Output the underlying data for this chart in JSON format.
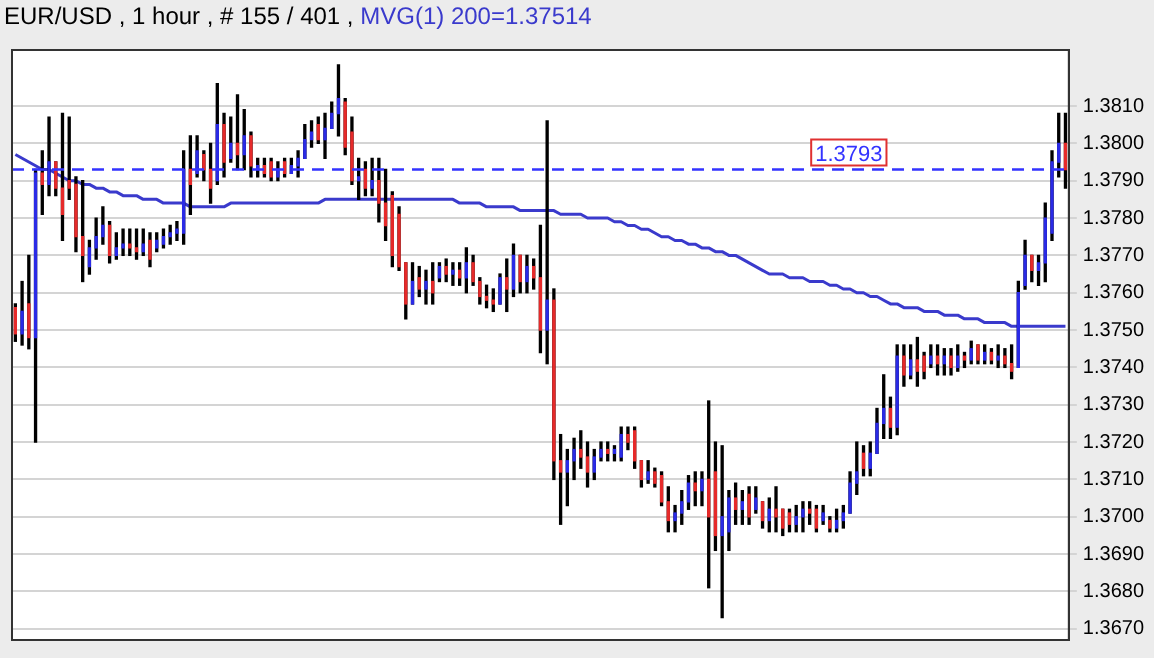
{
  "chart_data": {
    "type": "candlestick",
    "title": "EUR/USD , 1 hour , # 155 / 401 ,",
    "categories": [
      null,
      null,
      null,
      null,
      null,
      null,
      null,
      null,
      null,
      null,
      null,
      null,
      null,
      null,
      null,
      null,
      null,
      null,
      null,
      null,
      null,
      null,
      null,
      null,
      null,
      null,
      null,
      null,
      null,
      null,
      null,
      null,
      null,
      null,
      null,
      null,
      null,
      null,
      null,
      null,
      null,
      null,
      null,
      null,
      null,
      null,
      null,
      null,
      null,
      null,
      null,
      null,
      null,
      null,
      null,
      null,
      null,
      null,
      null,
      null,
      null,
      null,
      null,
      null,
      null,
      null,
      null,
      null,
      null,
      null,
      null,
      null,
      null,
      null,
      null,
      null,
      null,
      null,
      null,
      null,
      null,
      null,
      null,
      null,
      null,
      null,
      null,
      null,
      null,
      null,
      null,
      null,
      null,
      null,
      null,
      null,
      null,
      null,
      null,
      null,
      null,
      null,
      null,
      null,
      null,
      null,
      null,
      null,
      null,
      null,
      null,
      null,
      null,
      null,
      null,
      null,
      null,
      null,
      null,
      null,
      null,
      null,
      null,
      null,
      null,
      null,
      null,
      null,
      null,
      null,
      null,
      null,
      null,
      null,
      null,
      null,
      null,
      null,
      null,
      null,
      null,
      null,
      null,
      null,
      null,
      null,
      null,
      null,
      null,
      null,
      null,
      null,
      null,
      null,
      null,
      null,
      null
    ],
    "series": [
      {
        "type": "candlestick",
        "color": "#000000",
        "colors": [
          "#e62a2a",
          "#2a2ae6",
          "#e62a2a",
          "#2a2ae6",
          "#e62a2a",
          "#2a2ae6",
          "#e62a2a",
          "#e62a2a",
          "#e62a2a",
          "#e62a2a",
          "#e62a2a",
          "#2a2ae6",
          "#2a2ae6",
          "#2a2ae6",
          "#e62a2a",
          "#2a2ae6",
          "#2a2ae6",
          "#e62a2a",
          "#e62a2a",
          "#2a2ae6",
          "#e62a2a",
          "#2a2ae6",
          "#2a2ae6",
          "#2a2ae6",
          "#2a2ae6",
          "#2a2ae6",
          "#e62a2a",
          "#2a2ae6",
          "#e62a2a",
          "#e62a2a",
          "#2a2ae6",
          "#e62a2a",
          "#2a2ae6",
          "#e62a2a",
          "#2a2ae6",
          "#e62a2a",
          "#2a2ae6",
          "#e62a2a",
          "#e62a2a",
          "#2a2ae6",
          "#e62a2a",
          "#2a2ae6",
          "#2a2ae6",
          "#2a2ae6",
          "#2a2ae6",
          "#e62a2a",
          "#2a2ae6",
          "#2a2ae6",
          "#2a2ae6",
          "#e62a2a",
          "#e62a2a",
          "#2a2ae6",
          "#e62a2a",
          "#2a2ae6",
          "#e62a2a",
          "#e62a2a",
          "#e62a2a",
          "#e62a2a",
          "#e62a2a",
          "#2a2ae6",
          "#e62a2a",
          "#2a2ae6",
          "#e62a2a",
          "#2a2ae6",
          "#e62a2a",
          "#2a2ae6",
          "#e62a2a",
          "#2a2ae6",
          "#e62a2a",
          "#e62a2a",
          "#e62a2a",
          "#e62a2a",
          "#2a2ae6",
          "#e62a2a",
          "#2a2ae6",
          "#e62a2a",
          "#2a2ae6",
          "#e62a2a",
          "#e62a2a",
          "#2a2ae6",
          "#e62a2a",
          "#e62a2a",
          "#2a2ae6",
          "#2a2ae6",
          "#e62a2a",
          "#e62a2a",
          "#2a2ae6",
          "#2a2ae6",
          "#e62a2a",
          "#2a2ae6",
          "#2a2ae6",
          "#e62a2a",
          "#e62a2a",
          "#e62a2a",
          "#2a2ae6",
          "#e62a2a",
          "#e62a2a",
          "#e62a2a",
          "#2a2ae6",
          "#2a2ae6",
          "#2a2ae6",
          "#e62a2a",
          "#2a2ae6",
          "#e62a2a",
          "#e62a2a",
          "#2a2ae6",
          "#2a2ae6",
          "#e62a2a",
          "#2a2ae6",
          "#e62a2a",
          "#2a2ae6",
          "#e62a2a",
          "#2a2ae6",
          "#e62a2a",
          "#e62a2a",
          "#e62a2a",
          "#2a2ae6",
          "#2a2ae6",
          "#e62a2a",
          "#e62a2a",
          "#2a2ae6",
          "#e62a2a",
          "#2a2ae6",
          "#2a2ae6",
          "#2a2ae6",
          "#2a2ae6",
          "#e62a2a",
          "#2a2ae6",
          "#2a2ae6",
          "#2a2ae6",
          "#e62a2a",
          "#2a2ae6",
          "#e62a2a",
          "#2a2ae6",
          "#e62a2a",
          "#e62a2a",
          "#2a2ae6",
          "#e62a2a",
          "#2a2ae6",
          "#e62a2a",
          "#2a2ae6",
          "#e62a2a",
          "#2a2ae6",
          "#e62a2a",
          "#2a2ae6",
          "#e62a2a",
          "#2a2ae6",
          "#e62a2a",
          "#e62a2a",
          "#2a2ae6",
          "#2a2ae6",
          "#e62a2a",
          "#2a2ae6",
          "#2a2ae6",
          "#2a2ae6",
          "#2a2ae6",
          "#e62a2a"
        ],
        "ohlc": [
          [
            1.3756,
            1.3757,
            1.3747,
            1.3749
          ],
          [
            1.3749,
            1.3763,
            1.3746,
            1.3755
          ],
          [
            1.3757,
            1.377,
            1.3745,
            1.3748
          ],
          [
            1.3748,
            1.3793,
            1.372,
            1.3792
          ],
          [
            1.3792,
            1.3798,
            1.3781,
            1.3789
          ],
          [
            1.3789,
            1.3807,
            1.3786,
            1.3795
          ],
          [
            1.3795,
            1.3795,
            1.3786,
            1.3788
          ],
          [
            1.3788,
            1.3808,
            1.3774,
            1.3781
          ],
          [
            1.379,
            1.3807,
            1.3785,
            1.3788
          ],
          [
            1.3789,
            1.3791,
            1.3771,
            1.3775
          ],
          [
            1.3775,
            1.379,
            1.3763,
            1.377
          ],
          [
            1.3767,
            1.3774,
            1.3765,
            1.3772
          ],
          [
            1.3772,
            1.378,
            1.3769,
            1.3775
          ],
          [
            1.3775,
            1.3783,
            1.3773,
            1.3778
          ],
          [
            1.3778,
            1.3779,
            1.3768,
            1.377
          ],
          [
            1.377,
            1.3776,
            1.3769,
            1.3772
          ],
          [
            1.3772,
            1.3777,
            1.377,
            1.3773
          ],
          [
            1.3773,
            1.3777,
            1.377,
            1.3772
          ],
          [
            1.3772,
            1.3777,
            1.3769,
            1.3771
          ],
          [
            1.3771,
            1.3777,
            1.377,
            1.3773
          ],
          [
            1.3774,
            1.3776,
            1.3767,
            1.3769
          ],
          [
            1.3772,
            1.3776,
            1.3771,
            1.3774
          ],
          [
            1.3773,
            1.3777,
            1.3772,
            1.3775
          ],
          [
            1.3775,
            1.3778,
            1.3773,
            1.3776
          ],
          [
            1.3776,
            1.3779,
            1.3774,
            1.3777
          ],
          [
            1.3776,
            1.3798,
            1.3773,
            1.3793
          ],
          [
            1.3793,
            1.3802,
            1.3781,
            1.3789
          ],
          [
            1.3792,
            1.3802,
            1.3791,
            1.3798
          ],
          [
            1.3797,
            1.3798,
            1.379,
            1.3793
          ],
          [
            1.3793,
            1.38,
            1.3784,
            1.3788
          ],
          [
            1.379,
            1.3816,
            1.3789,
            1.3805
          ],
          [
            1.3805,
            1.3808,
            1.3791,
            1.3795
          ],
          [
            1.3796,
            1.3807,
            1.3795,
            1.38
          ],
          [
            1.38,
            1.3813,
            1.3793,
            1.3797
          ],
          [
            1.3797,
            1.3809,
            1.3793,
            1.3802
          ],
          [
            1.3802,
            1.3803,
            1.3791,
            1.3794
          ],
          [
            1.3793,
            1.3796,
            1.3791,
            1.3794
          ],
          [
            1.3794,
            1.3796,
            1.3791,
            1.3792
          ],
          [
            1.3795,
            1.3796,
            1.379,
            1.3791
          ],
          [
            1.3791,
            1.3795,
            1.379,
            1.3793
          ],
          [
            1.3795,
            1.3796,
            1.3791,
            1.3792
          ],
          [
            1.3792,
            1.3796,
            1.3792,
            1.3794
          ],
          [
            1.3794,
            1.3798,
            1.3791,
            1.3796
          ],
          [
            1.3796,
            1.3805,
            1.3796,
            1.3801
          ],
          [
            1.3801,
            1.3806,
            1.3799,
            1.3803
          ],
          [
            1.3805,
            1.3807,
            1.38,
            1.3801
          ],
          [
            1.3801,
            1.3808,
            1.3796,
            1.3804
          ],
          [
            1.3804,
            1.3811,
            1.3804,
            1.3808
          ],
          [
            1.3808,
            1.3821,
            1.3802,
            1.3812
          ],
          [
            1.3811,
            1.3812,
            1.3797,
            1.3799
          ],
          [
            1.3803,
            1.3807,
            1.3789,
            1.379
          ],
          [
            1.379,
            1.3796,
            1.3785,
            1.3791
          ],
          [
            1.3793,
            1.3795,
            1.3786,
            1.3788
          ],
          [
            1.3788,
            1.3796,
            1.3786,
            1.379
          ],
          [
            1.379,
            1.3796,
            1.3779,
            1.3784
          ],
          [
            1.3784,
            1.3793,
            1.3774,
            1.3778
          ],
          [
            1.3786,
            1.3787,
            1.3767,
            1.377
          ],
          [
            1.3781,
            1.3783,
            1.3766,
            1.3767
          ],
          [
            1.3768,
            1.3768,
            1.3753,
            1.3757
          ],
          [
            1.3757,
            1.3768,
            1.3757,
            1.3763
          ],
          [
            1.3764,
            1.3767,
            1.3759,
            1.3761
          ],
          [
            1.3761,
            1.3766,
            1.3757,
            1.3763
          ],
          [
            1.3763,
            1.3768,
            1.3757,
            1.376
          ],
          [
            1.3764,
            1.3768,
            1.3763,
            1.3767
          ],
          [
            1.3767,
            1.3769,
            1.3763,
            1.3765
          ],
          [
            1.3765,
            1.3768,
            1.3762,
            1.3766
          ],
          [
            1.3766,
            1.3768,
            1.3762,
            1.3764
          ],
          [
            1.3764,
            1.3772,
            1.376,
            1.3768
          ],
          [
            1.3768,
            1.377,
            1.3762,
            1.3763
          ],
          [
            1.3763,
            1.3764,
            1.3757,
            1.3759
          ],
          [
            1.3759,
            1.3762,
            1.3756,
            1.3758
          ],
          [
            1.3758,
            1.3761,
            1.3755,
            1.3757
          ],
          [
            1.3757,
            1.3765,
            1.3757,
            1.3764
          ],
          [
            1.3764,
            1.3769,
            1.3755,
            1.3761
          ],
          [
            1.3761,
            1.3773,
            1.3759,
            1.377
          ],
          [
            1.377,
            1.377,
            1.376,
            1.3763
          ],
          [
            1.3763,
            1.377,
            1.376,
            1.3767
          ],
          [
            1.3767,
            1.3769,
            1.3761,
            1.3764
          ],
          [
            1.3764,
            1.3778,
            1.3744,
            1.375
          ],
          [
            1.375,
            1.3806,
            1.3741,
            1.3758
          ],
          [
            1.3758,
            1.3761,
            1.371,
            1.3715
          ],
          [
            1.3715,
            1.3722,
            1.3698,
            1.3712
          ],
          [
            1.3712,
            1.3718,
            1.3703,
            1.3715
          ],
          [
            1.3715,
            1.3721,
            1.371,
            1.3718
          ],
          [
            1.3718,
            1.3723,
            1.3713,
            1.3716
          ],
          [
            1.3716,
            1.372,
            1.3708,
            1.3712
          ],
          [
            1.3712,
            1.3718,
            1.371,
            1.3716
          ],
          [
            1.3716,
            1.372,
            1.3715,
            1.3718
          ],
          [
            1.3718,
            1.372,
            1.3715,
            1.3717
          ],
          [
            1.3717,
            1.3719,
            1.3715,
            1.3718
          ],
          [
            1.3716,
            1.3724,
            1.3715,
            1.3722
          ],
          [
            1.3722,
            1.3724,
            1.3718,
            1.372
          ],
          [
            1.3723,
            1.3724,
            1.3713,
            1.3715
          ],
          [
            1.3715,
            1.3715,
            1.3708,
            1.371
          ],
          [
            1.371,
            1.3715,
            1.3709,
            1.3712
          ],
          [
            1.3712,
            1.3713,
            1.3708,
            1.3709
          ],
          [
            1.3711,
            1.3712,
            1.3703,
            1.3704
          ],
          [
            1.3704,
            1.3708,
            1.3696,
            1.3699
          ],
          [
            1.3699,
            1.3703,
            1.3696,
            1.3701
          ],
          [
            1.3701,
            1.3707,
            1.3698,
            1.3704
          ],
          [
            1.3704,
            1.3711,
            1.3702,
            1.3709
          ],
          [
            1.3709,
            1.3712,
            1.3703,
            1.3707
          ],
          [
            1.3707,
            1.3712,
            1.3703,
            1.371
          ],
          [
            1.371,
            1.3731,
            1.3681,
            1.37
          ],
          [
            1.3712,
            1.372,
            1.3691,
            1.3695
          ],
          [
            1.3695,
            1.3719,
            1.3673,
            1.37
          ],
          [
            1.3696,
            1.3707,
            1.3691,
            1.3705
          ],
          [
            1.3705,
            1.3709,
            1.3698,
            1.3702
          ],
          [
            1.3702,
            1.3707,
            1.3698,
            1.3704
          ],
          [
            1.3706,
            1.3708,
            1.3698,
            1.37
          ],
          [
            1.3702,
            1.3708,
            1.3701,
            1.3705
          ],
          [
            1.3704,
            1.3704,
            1.3697,
            1.3699
          ],
          [
            1.3699,
            1.3705,
            1.3696,
            1.3702
          ],
          [
            1.3702,
            1.3708,
            1.3696,
            1.37
          ],
          [
            1.3702,
            1.3702,
            1.3695,
            1.3697
          ],
          [
            1.3701,
            1.3702,
            1.3696,
            1.3698
          ],
          [
            1.3698,
            1.3703,
            1.3696,
            1.37
          ],
          [
            1.37,
            1.3704,
            1.3696,
            1.3702
          ],
          [
            1.3702,
            1.3704,
            1.3698,
            1.3701
          ],
          [
            1.3702,
            1.3703,
            1.3696,
            1.3697
          ],
          [
            1.3699,
            1.3703,
            1.3698,
            1.3701
          ],
          [
            1.3699,
            1.37,
            1.3696,
            1.3697
          ],
          [
            1.3697,
            1.3702,
            1.3696,
            1.3699
          ],
          [
            1.3699,
            1.3703,
            1.3697,
            1.3701
          ],
          [
            1.3701,
            1.3712,
            1.3701,
            1.3709
          ],
          [
            1.3709,
            1.372,
            1.3706,
            1.3712
          ],
          [
            1.3717,
            1.3719,
            1.3711,
            1.3713
          ],
          [
            1.3713,
            1.372,
            1.3711,
            1.3717
          ],
          [
            1.3717,
            1.3729,
            1.3717,
            1.3725
          ],
          [
            1.3725,
            1.3738,
            1.3721,
            1.3729
          ],
          [
            1.3729,
            1.3732,
            1.3721,
            1.3724
          ],
          [
            1.3724,
            1.3746,
            1.3722,
            1.3743
          ],
          [
            1.3743,
            1.3746,
            1.3735,
            1.3738
          ],
          [
            1.3738,
            1.3746,
            1.3737,
            1.3742
          ],
          [
            1.3742,
            1.3748,
            1.3735,
            1.3739
          ],
          [
            1.3743,
            1.3744,
            1.3737,
            1.3739
          ],
          [
            1.3741,
            1.3746,
            1.374,
            1.3743
          ],
          [
            1.3743,
            1.3746,
            1.3738,
            1.3741
          ],
          [
            1.3741,
            1.3745,
            1.3738,
            1.3743
          ],
          [
            1.3743,
            1.3745,
            1.3738,
            1.374
          ],
          [
            1.374,
            1.3746,
            1.3739,
            1.3743
          ],
          [
            1.3743,
            1.3744,
            1.374,
            1.3742
          ],
          [
            1.3742,
            1.3747,
            1.3741,
            1.3745
          ],
          [
            1.3746,
            1.3746,
            1.3741,
            1.3742
          ],
          [
            1.3742,
            1.3746,
            1.3741,
            1.3744
          ],
          [
            1.3744,
            1.3745,
            1.3741,
            1.3742
          ],
          [
            1.3742,
            1.3746,
            1.374,
            1.3743
          ],
          [
            1.3743,
            1.3745,
            1.374,
            1.3741
          ],
          [
            1.3741,
            1.3746,
            1.3737,
            1.3739
          ],
          [
            1.374,
            1.3763,
            1.374,
            1.376
          ],
          [
            1.3762,
            1.3774,
            1.3761,
            1.377
          ],
          [
            1.377,
            1.377,
            1.3763,
            1.3766
          ],
          [
            1.3766,
            1.377,
            1.3762,
            1.3768
          ],
          [
            1.3768,
            1.3784,
            1.3763,
            1.378
          ],
          [
            1.3776,
            1.3798,
            1.3774,
            1.3795
          ],
          [
            1.3795,
            1.3808,
            1.3791,
            1.38
          ],
          [
            1.38,
            1.3808,
            1.3788,
            1.3793
          ]
        ]
      },
      {
        "type": "line",
        "name": "MVG(1) 200=1.37514",
        "color": "#3a3acc",
        "values": [
          1.3797,
          1.3796,
          1.3795,
          1.3794,
          1.3793,
          1.3793,
          1.3792,
          1.3791,
          1.379,
          1.379,
          1.3789,
          1.3789,
          1.3788,
          1.3788,
          1.3787,
          1.3787,
          1.3786,
          1.3786,
          1.3786,
          1.3785,
          1.3785,
          1.3785,
          1.3784,
          1.3784,
          1.3784,
          1.3784,
          1.3783,
          1.3783,
          1.3783,
          1.3783,
          1.3783,
          1.3783,
          1.3784,
          1.3784,
          1.3784,
          1.3784,
          1.3784,
          1.3784,
          1.3784,
          1.3784,
          1.3784,
          1.3784,
          1.3784,
          1.3784,
          1.3784,
          1.3784,
          1.3785,
          1.3785,
          1.3785,
          1.3785,
          1.3785,
          1.3785,
          1.3785,
          1.3785,
          1.3785,
          1.3785,
          1.3785,
          1.3785,
          1.3785,
          1.3785,
          1.3785,
          1.3785,
          1.3785,
          1.3785,
          1.3785,
          1.3785,
          1.3784,
          1.3784,
          1.3784,
          1.3784,
          1.3783,
          1.3783,
          1.3783,
          1.3783,
          1.3783,
          1.3782,
          1.3782,
          1.3782,
          1.3782,
          1.3782,
          1.3782,
          1.3781,
          1.3781,
          1.3781,
          1.3781,
          1.378,
          1.378,
          1.378,
          1.378,
          1.3779,
          1.3779,
          1.3778,
          1.3778,
          1.3777,
          1.3777,
          1.3776,
          1.3775,
          1.3775,
          1.3774,
          1.3774,
          1.3773,
          1.3773,
          1.3772,
          1.3772,
          1.3771,
          1.3771,
          1.377,
          1.377,
          1.3769,
          1.3768,
          1.3767,
          1.3766,
          1.3765,
          1.3765,
          1.3765,
          1.3764,
          1.3764,
          1.3764,
          1.3763,
          1.3763,
          1.3763,
          1.3762,
          1.3762,
          1.3761,
          1.3761,
          1.376,
          1.376,
          1.3759,
          1.3759,
          1.3758,
          1.3757,
          1.3757,
          1.3756,
          1.3756,
          1.3756,
          1.3755,
          1.3755,
          1.3755,
          1.3754,
          1.3754,
          1.3754,
          1.3753,
          1.3753,
          1.3753,
          1.3752,
          1.3752,
          1.3752,
          1.3752,
          1.3751,
          1.3751,
          1.3751,
          1.3751,
          1.3751,
          1.3751,
          1.3751,
          1.3751,
          1.3751
        ]
      }
    ],
    "ref_lines": [
      {
        "axis": "y",
        "value": 1.3793,
        "label": "1.3793",
        "color": "#3333ff",
        "line_style": "dashed"
      }
    ],
    "ylim": [
      1.3667,
      1.3825
    ],
    "yticks": [
      {
        "value": 1.367,
        "label": "1.3670"
      },
      {
        "value": 1.368,
        "label": "1.3680"
      },
      {
        "value": 1.369,
        "label": "1.3690"
      },
      {
        "value": 1.37,
        "label": "1.3700"
      },
      {
        "value": 1.371,
        "label": "1.3710"
      },
      {
        "value": 1.372,
        "label": "1.3720"
      },
      {
        "value": 1.373,
        "label": "1.3730"
      },
      {
        "value": 1.374,
        "label": "1.3740"
      },
      {
        "value": 1.375,
        "label": "1.3750"
      },
      {
        "value": 1.376,
        "label": "1.3760"
      },
      {
        "value": 1.377,
        "label": "1.3770"
      },
      {
        "value": 1.378,
        "label": "1.3780"
      },
      {
        "value": 1.379,
        "label": "1.3790"
      },
      {
        "value": 1.38,
        "label": "1.3800"
      },
      {
        "value": 1.381,
        "label": "1.3810"
      }
    ],
    "grid": "y",
    "legend": false,
    "tick_labels": "y"
  }
}
